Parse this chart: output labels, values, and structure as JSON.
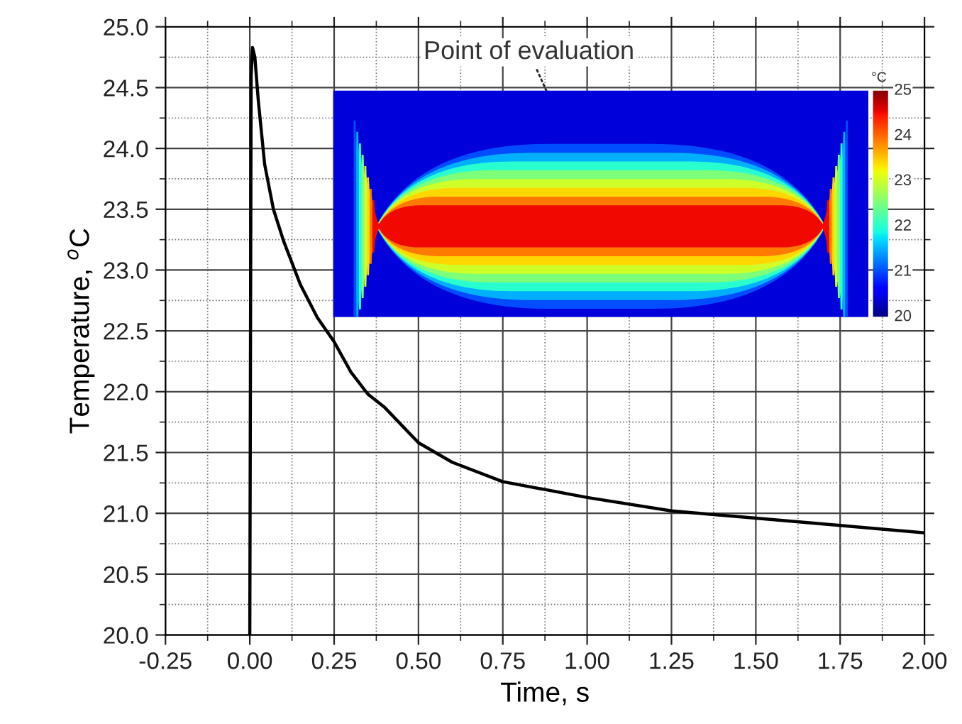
{
  "chart_data": {
    "type": "line",
    "xlabel": "Time, s",
    "ylabel": "Temperature, $^{o}$C",
    "x": [
      0.0,
      0.004,
      0.008,
      0.015,
      0.025,
      0.044,
      0.07,
      0.1,
      0.15,
      0.2,
      0.25,
      0.3,
      0.35,
      0.4,
      0.5,
      0.6,
      0.75,
      1.0,
      1.25,
      1.5,
      1.75,
      2.0
    ],
    "series": [
      {
        "color": "#000000",
        "values": [
          20.0,
          24.6,
          24.83,
          24.75,
          24.4,
          23.87,
          23.5,
          23.24,
          22.88,
          22.61,
          22.41,
          22.16,
          21.98,
          21.87,
          21.58,
          21.42,
          21.26,
          21.13,
          21.02,
          20.96,
          20.9,
          20.84
        ]
      }
    ],
    "xlim": [
      -0.25,
      2.0
    ],
    "xticks": [
      {
        "value": -0.25,
        "label": "-0.25"
      },
      {
        "value": 0,
        "label": "0.00"
      },
      {
        "value": 0.25,
        "label": "0.25"
      },
      {
        "value": 0.5,
        "label": "0.50"
      },
      {
        "value": 0.75,
        "label": "0.75"
      },
      {
        "value": 1.0,
        "label": "1.00"
      },
      {
        "value": 1.25,
        "label": "1.25"
      },
      {
        "value": 1.5,
        "label": "1.50"
      },
      {
        "value": 1.75,
        "label": "1.75"
      },
      {
        "value": 2.0,
        "label": "2.00"
      }
    ],
    "ylim": [
      20.0,
      25.0
    ],
    "yticks": [
      {
        "value": 20,
        "label": "20.0"
      },
      {
        "value": 20.5,
        "label": "20.5"
      },
      {
        "value": 21,
        "label": "21.0"
      },
      {
        "value": 21.5,
        "label": "21.5"
      },
      {
        "value": 22,
        "label": "22.0"
      },
      {
        "value": 22.5,
        "label": "22.5"
      },
      {
        "value": 23,
        "label": "23.0"
      },
      {
        "value": 23.5,
        "label": "23.5"
      },
      {
        "value": 24,
        "label": "24.0"
      },
      {
        "value": 24.5,
        "label": "24.5"
      },
      {
        "value": 25,
        "label": "25.0"
      }
    ],
    "grid": true,
    "marker": "none",
    "line_style": "solid",
    "legend": false,
    "annotations": [
      "Point of evaluation",
      "°C",
      "25",
      "24",
      "23",
      "22",
      "21",
      "20"
    ]
  }
}
